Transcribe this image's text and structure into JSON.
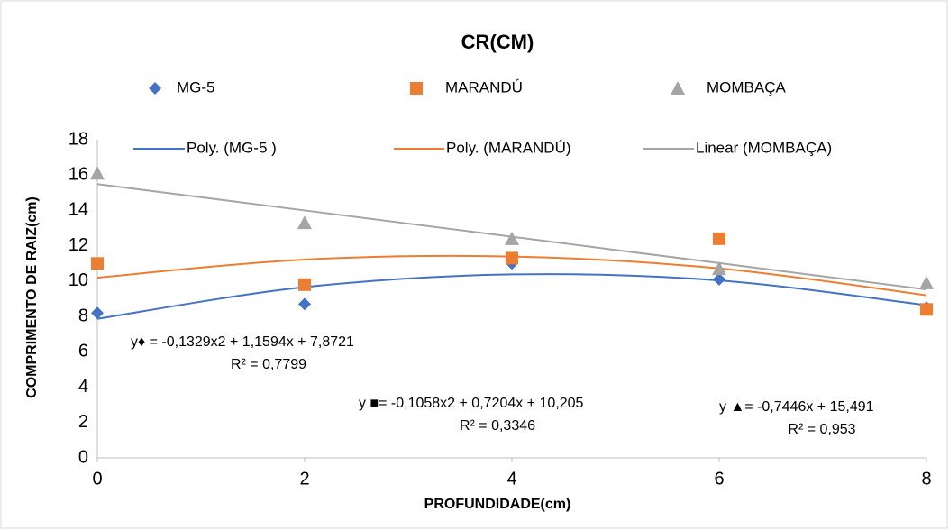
{
  "chart_data": {
    "type": "scatter",
    "title": "CR(CM)",
    "x_label": "PROFUNDIDADE(cm)",
    "y_label": "COMPRIMENTO DE RAIZ(cm)",
    "x": [
      0,
      2,
      4,
      6,
      8
    ],
    "xlim": [
      0,
      8
    ],
    "xticks": [
      0,
      2,
      4,
      6,
      8
    ],
    "ylim": [
      0,
      18
    ],
    "yticks": [
      0,
      2,
      4,
      6,
      8,
      10,
      12,
      14,
      16,
      18
    ],
    "grid": false,
    "series": [
      {
        "name": "MG-5",
        "color": "#4472c4",
        "marker": "diamond",
        "values": [
          8.2,
          8.7,
          11.0,
          10.1,
          8.5
        ],
        "trendline": {
          "name": "Poly. (MG-5 )",
          "values": [
            7.87,
            9.66,
            10.38,
            10.04,
            8.64
          ]
        }
      },
      {
        "name": "MARANDÚ",
        "color": "#ed7d31",
        "marker": "square",
        "values": [
          11.0,
          9.8,
          11.3,
          12.4,
          8.4
        ],
        "trendline": {
          "name": "Poly. (MARANDÚ)",
          "values": [
            10.2,
            11.22,
            11.39,
            10.72,
            9.2
          ]
        }
      },
      {
        "name": "MOMBAÇA",
        "color": "#a5a5a5",
        "marker": "triangle",
        "values": [
          16.1,
          13.3,
          12.4,
          10.7,
          9.9
        ],
        "trendline": {
          "name": "Linear (MOMBAÇA)",
          "values": [
            15.49,
            14.0,
            12.51,
            11.02,
            9.53
          ]
        }
      }
    ],
    "annotations": [
      "y♦ = -0,1329x2 + 1,1594x + 7,8721",
      "R² = 0,7799",
      "y ■= -0,1058x2 + 0,7204x + 10,205",
      "R² = 0,3346",
      "y ▲= -0,7446x + 15,491",
      "R² = 0,953"
    ]
  }
}
